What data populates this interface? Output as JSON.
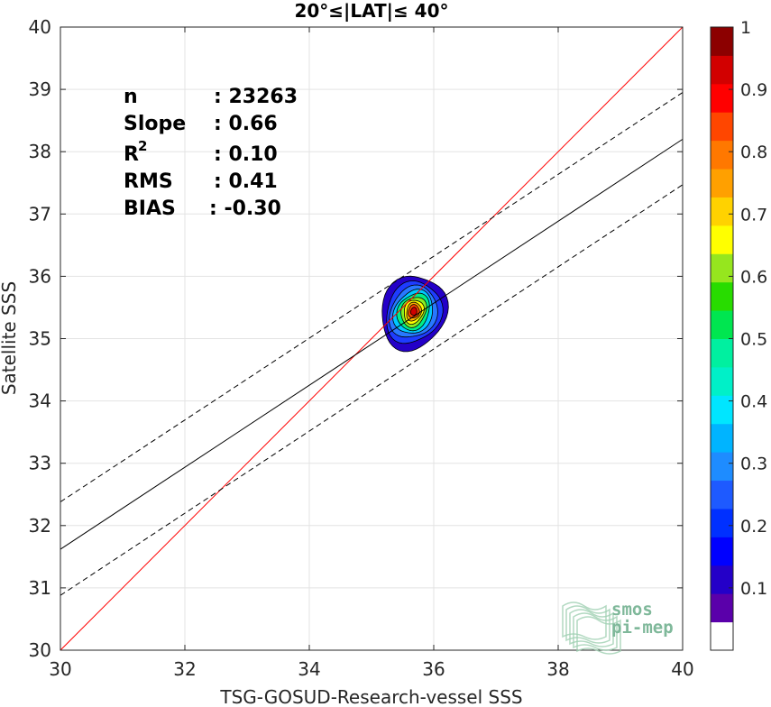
{
  "chart_data": {
    "type": "contour-scatter",
    "title": "20°≤|LAT|≤ 40°",
    "xlabel": "TSG-GOSUD-Research-vessel SSS",
    "ylabel": "Satellite SSS",
    "xlim": [
      30,
      40
    ],
    "ylim": [
      30,
      40
    ],
    "xticks": [
      30,
      32,
      34,
      36,
      38,
      40
    ],
    "yticks": [
      30,
      31,
      32,
      33,
      34,
      35,
      36,
      37,
      38,
      39,
      40
    ],
    "grid": true,
    "stats": [
      {
        "name": "n",
        "sep": ":",
        "value": "23263"
      },
      {
        "name": "Slope",
        "sep": ":",
        "value": "0.66"
      },
      {
        "name": "R",
        "sup": "2",
        "sep": ":",
        "value": "0.10"
      },
      {
        "name": "RMS",
        "sep": ":",
        "value": "0.41"
      },
      {
        "name": "BIAS",
        "sep": ":",
        "value": "-0.30"
      }
    ],
    "lines": [
      {
        "name": "1:1",
        "color": "#ff0000",
        "style": "solid",
        "x": [
          30,
          40
        ],
        "y": [
          30,
          40
        ]
      },
      {
        "name": "regression",
        "color": "#000000",
        "style": "solid",
        "x": [
          30,
          40
        ],
        "y": [
          31.62,
          38.2
        ]
      },
      {
        "name": "regression+",
        "color": "#000000",
        "style": "dashed",
        "x": [
          30,
          40
        ],
        "y": [
          32.38,
          38.95
        ]
      },
      {
        "name": "regression-",
        "color": "#000000",
        "style": "dashed",
        "x": [
          30,
          40
        ],
        "y": [
          30.88,
          37.47
        ]
      }
    ],
    "density_contours": {
      "center": [
        35.68,
        35.44
      ],
      "levels": [
        0.05,
        0.15,
        0.25,
        0.35,
        0.45,
        0.55,
        0.65,
        0.75,
        0.85,
        0.95
      ],
      "colors": [
        "#2400c8",
        "#1e3cff",
        "#2878ff",
        "#00c8ff",
        "#00ee88",
        "#88ee22",
        "#ffff00",
        "#ffb000",
        "#ff4400",
        "#d00000"
      ],
      "semi_axes": [
        [
          0.5,
          0.6
        ],
        [
          0.42,
          0.5
        ],
        [
          0.36,
          0.42
        ],
        [
          0.3,
          0.35
        ],
        [
          0.25,
          0.29
        ],
        [
          0.2,
          0.23
        ],
        [
          0.16,
          0.18
        ],
        [
          0.12,
          0.14
        ],
        [
          0.09,
          0.1
        ],
        [
          0.05,
          0.06
        ]
      ]
    },
    "colorbar": {
      "range": [
        0,
        1
      ],
      "tick_values": [
        0.1,
        0.2,
        0.3,
        0.4,
        0.5,
        0.6,
        0.7,
        0.8,
        0.9,
        1
      ],
      "tick_labels": [
        "0.1",
        "0.2",
        "0.3",
        "0.4",
        "0.5",
        "0.6",
        "0.7",
        "0.8",
        "0.9",
        "1"
      ],
      "colors": [
        "#ffffff",
        "#5a00aa",
        "#2400c8",
        "#0000ff",
        "#0030ff",
        "#1e5aff",
        "#1e8cff",
        "#00b4ff",
        "#00e6ff",
        "#00f0c8",
        "#00f0a0",
        "#00e650",
        "#28dc00",
        "#96e61e",
        "#ffff00",
        "#ffd200",
        "#ffa000",
        "#ff7800",
        "#ff4600",
        "#ff0000",
        "#d20000",
        "#8c0000"
      ]
    },
    "logo": {
      "line1": "smos",
      "line2": "pi-mep"
    }
  }
}
